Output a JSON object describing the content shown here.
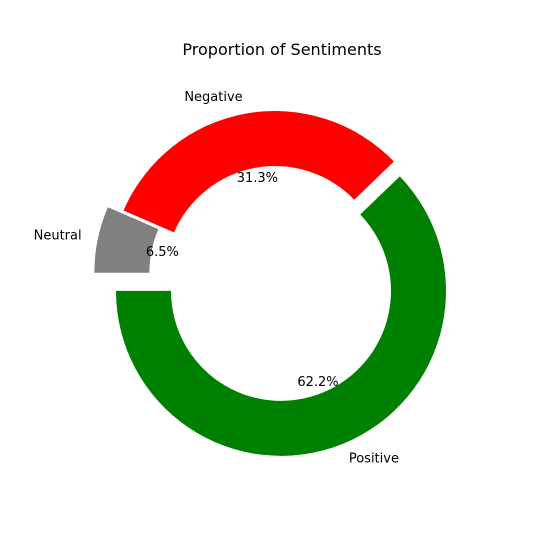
{
  "chart_data": {
    "type": "pie",
    "title": "Proportion of Sentiments",
    "categories": [
      "Positive",
      "Negative",
      "Neutral"
    ],
    "values": [
      62.2,
      31.3,
      6.5
    ],
    "value_labels": [
      "62.2%",
      "31.3%",
      "6.5%"
    ],
    "colors": [
      "#008000",
      "#ff0000",
      "#808080"
    ],
    "donut": true,
    "exploded": [
      "Positive",
      "Neutral"
    ],
    "legend": false
  }
}
